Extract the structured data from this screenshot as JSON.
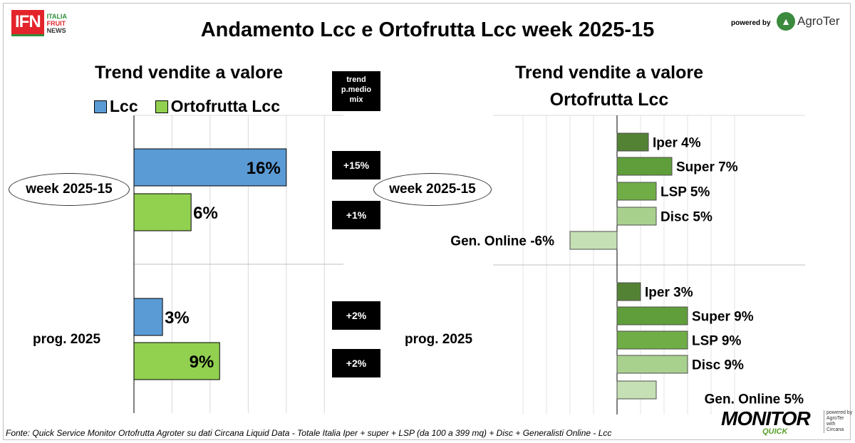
{
  "header": {
    "title": "Andamento Lcc e Ortofrutta Lcc week 2025-15",
    "ifn_logo": "IFN",
    "ifn_lines": [
      "ITALIA",
      "FRUIT",
      "NEWS"
    ],
    "powered_by": "powered by",
    "agroter": "AgroTer"
  },
  "left": {
    "subtitle": "Trend vendite a valore",
    "legend": [
      {
        "label": "Lcc",
        "color": "#5b9bd5"
      },
      {
        "label": "Ortofrutta Lcc",
        "color": "#92d050"
      }
    ],
    "trend_header": [
      "trend",
      "p.medio",
      "mix"
    ],
    "groups": [
      "week 2025-15",
      "prog. 2025"
    ],
    "badges": [
      "+15%",
      "+1%",
      "+2%",
      "+2%"
    ]
  },
  "right": {
    "subtitle_line1": "Trend vendite a valore",
    "subtitle_line2": "Ortofrutta Lcc",
    "groups": [
      "week 2025-15",
      "prog. 2025"
    ]
  },
  "chart_data": [
    {
      "type": "bar",
      "title": "Trend vendite a valore",
      "categories": [
        "week 2025-15",
        "prog. 2025"
      ],
      "series": [
        {
          "name": "Lcc",
          "values": [
            16,
            3
          ],
          "labels": [
            "16%",
            "3%"
          ],
          "color": "#5b9bd5"
        },
        {
          "name": "Ortofrutta Lcc",
          "values": [
            6,
            9
          ],
          "labels": [
            "6%",
            "9%"
          ],
          "color": "#92d050"
        }
      ],
      "xlim": [
        0,
        22
      ],
      "grid": true
    },
    {
      "type": "bar",
      "title": "Trend vendite a valore Ortofrutta Lcc",
      "categories": [
        "week 2025-15",
        "prog. 2025"
      ],
      "series": [
        {
          "name": "Iper",
          "values": [
            4,
            3
          ],
          "labels": [
            "Iper 4%",
            "Iper 3%"
          ],
          "color": "#548235"
        },
        {
          "name": "Super",
          "values": [
            7,
            9
          ],
          "labels": [
            "Super 7%",
            "Super 9%"
          ],
          "color": "#5f9e3a"
        },
        {
          "name": "LSP",
          "values": [
            5,
            9
          ],
          "labels": [
            "LSP 5%",
            "LSP 9%"
          ],
          "color": "#70ad47"
        },
        {
          "name": "Disc",
          "values": [
            5,
            9
          ],
          "labels": [
            "Disc 5%",
            "Disc 9%"
          ],
          "color": "#a9d18e"
        },
        {
          "name": "Gen. Online",
          "values": [
            -6,
            5
          ],
          "labels": [
            "Gen. Online -6%",
            "Gen. Online 5%"
          ],
          "color": "#c5e0b4"
        }
      ],
      "xlim": [
        -12,
        15
      ],
      "grid": true
    }
  ],
  "footer": {
    "source": "Fonte: Quick Service Monitor Ortofrutta Agroter su dati Circana Liquid Data - Totale Italia Iper + super + LSP (da 100 a 399 mq) + Disc + Generalisti Online - Lcc",
    "monitor": "MONITOR",
    "quick": "QUICK",
    "side": [
      "powered by",
      "AgroTer",
      "with",
      "Circana"
    ]
  }
}
